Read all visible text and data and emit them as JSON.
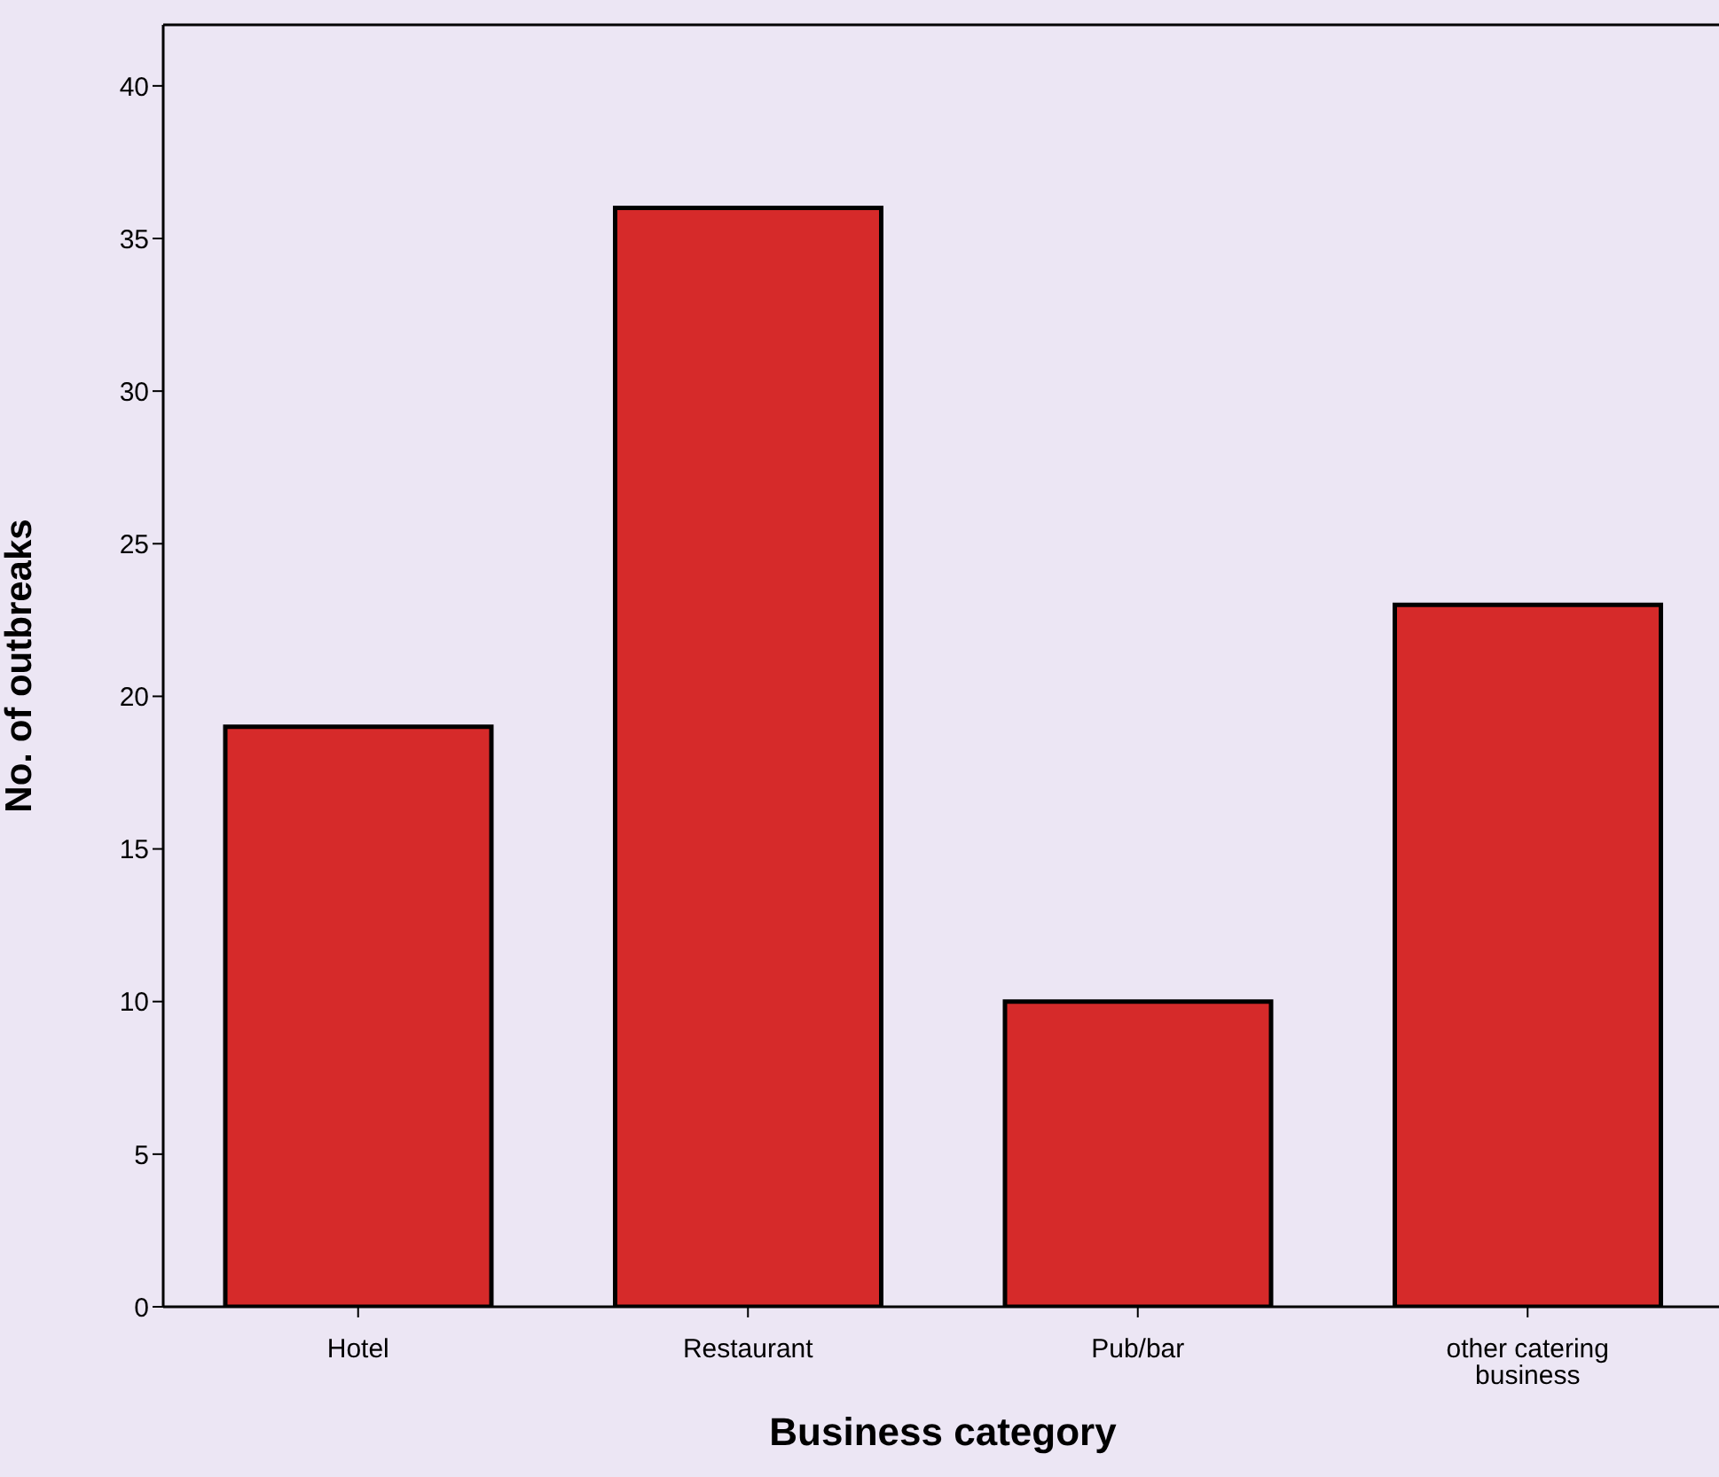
{
  "chart_data": {
    "type": "bar",
    "xlabel": "Business category",
    "ylabel": "No. of outbreaks",
    "categories": [
      "Hotel",
      "Restaurant",
      "Pub/bar",
      "other catering business"
    ],
    "values": [
      19,
      36,
      10,
      23
    ],
    "color": "#d62a2a",
    "ylim": [
      0,
      42
    ],
    "yticks": [
      0,
      5,
      10,
      15,
      20,
      25,
      30,
      35,
      40
    ],
    "grid": false,
    "legend": false
  }
}
